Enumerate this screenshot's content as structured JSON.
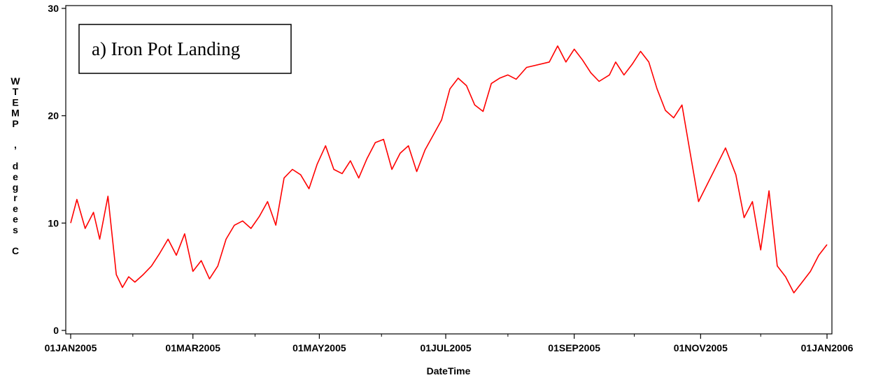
{
  "chart_data": {
    "type": "line",
    "title": "",
    "annotation": "a) Iron Pot Landing",
    "xlabel": "DateTime",
    "ylabel": "WTEMP, degrees C",
    "ylabel_chars": [
      "W",
      "T",
      "E",
      "M",
      "P",
      "",
      ",",
      "",
      "d",
      "e",
      "g",
      "r",
      "e",
      "e",
      "s",
      "",
      "C"
    ],
    "x_range": [
      "2005-01-01",
      "2006-01-01"
    ],
    "ylim": [
      0,
      30
    ],
    "y_ticks": [
      0,
      10,
      20,
      30
    ],
    "x_ticks": [
      {
        "date": "2005-01-01",
        "label": "01JAN2005"
      },
      {
        "date": "2005-03-01",
        "label": "01MAR2005"
      },
      {
        "date": "2005-05-01",
        "label": "01MAY2005"
      },
      {
        "date": "2005-07-01",
        "label": "01JUL2005"
      },
      {
        "date": "2005-09-01",
        "label": "01SEP2005"
      },
      {
        "date": "2005-11-01",
        "label": "01NOV2005"
      },
      {
        "date": "2006-01-01",
        "label": "01JAN2006"
      }
    ],
    "x_minor_ticks": [
      "2005-01-31",
      "2005-03-31",
      "2005-05-31",
      "2005-07-31",
      "2005-09-30",
      "2005-11-30"
    ],
    "grid": false,
    "line_color": "#ff0000",
    "series": [
      {
        "x": [
          "2005-01-01",
          "2005-01-04",
          "2005-01-08",
          "2005-01-12",
          "2005-01-15",
          "2005-01-19",
          "2005-01-23",
          "2005-01-26",
          "2005-01-29",
          "2005-02-01",
          "2005-02-05",
          "2005-02-09",
          "2005-02-13",
          "2005-02-17",
          "2005-02-21",
          "2005-02-25",
          "2005-03-01",
          "2005-03-05",
          "2005-03-09",
          "2005-03-13",
          "2005-03-17",
          "2005-03-21",
          "2005-03-25",
          "2005-03-29",
          "2005-04-02",
          "2005-04-06",
          "2005-04-10",
          "2005-04-14",
          "2005-04-18",
          "2005-04-22",
          "2005-04-26",
          "2005-04-30",
          "2005-05-04",
          "2005-05-08",
          "2005-05-12",
          "2005-05-16",
          "2005-05-20",
          "2005-05-24",
          "2005-05-28",
          "2005-06-01",
          "2005-06-05",
          "2005-06-09",
          "2005-06-13",
          "2005-06-17",
          "2005-06-21",
          "2005-06-25",
          "2005-06-29",
          "2005-07-03",
          "2005-07-07",
          "2005-07-11",
          "2005-07-15",
          "2005-07-19",
          "2005-07-23",
          "2005-07-27",
          "2005-07-31",
          "2005-08-04",
          "2005-08-09",
          "2005-08-20",
          "2005-08-24",
          "2005-08-28",
          "2005-09-01",
          "2005-09-05",
          "2005-09-09",
          "2005-09-13",
          "2005-09-18",
          "2005-09-21",
          "2005-09-25",
          "2005-09-29",
          "2005-10-03",
          "2005-10-07",
          "2005-10-11",
          "2005-10-15",
          "2005-10-19",
          "2005-10-23",
          "2005-10-27",
          "2005-10-31",
          "2005-11-13",
          "2005-11-18",
          "2005-11-22",
          "2005-11-26",
          "2005-11-30",
          "2005-12-04",
          "2005-12-08",
          "2005-12-12",
          "2005-12-16",
          "2005-12-20",
          "2005-12-24",
          "2005-12-28",
          "2006-01-01"
        ],
        "y": [
          10.0,
          12.2,
          9.5,
          11.0,
          8.5,
          12.5,
          5.2,
          4.0,
          5.0,
          4.5,
          5.2,
          6.0,
          7.2,
          8.5,
          7.0,
          9.0,
          5.5,
          6.5,
          4.8,
          6.0,
          8.5,
          9.8,
          10.2,
          9.5,
          10.6,
          12.0,
          9.8,
          14.2,
          15.0,
          14.5,
          13.2,
          15.5,
          17.2,
          15.0,
          14.6,
          15.8,
          14.2,
          16.0,
          17.5,
          17.8,
          15.0,
          16.5,
          17.2,
          14.8,
          16.8,
          18.2,
          19.6,
          22.5,
          23.5,
          22.8,
          21.0,
          20.4,
          23.0,
          23.5,
          23.8,
          23.4,
          24.5,
          25.0,
          26.5,
          25.0,
          26.2,
          25.2,
          24.0,
          23.2,
          23.8,
          25.0,
          23.8,
          24.8,
          26.0,
          25.0,
          22.5,
          20.5,
          19.8,
          21.0,
          16.5,
          12.0,
          17.0,
          14.5,
          10.5,
          12.0,
          7.5,
          13.0,
          6.0,
          5.0,
          3.5,
          4.5,
          5.5,
          7.0,
          8.0
        ]
      }
    ]
  }
}
